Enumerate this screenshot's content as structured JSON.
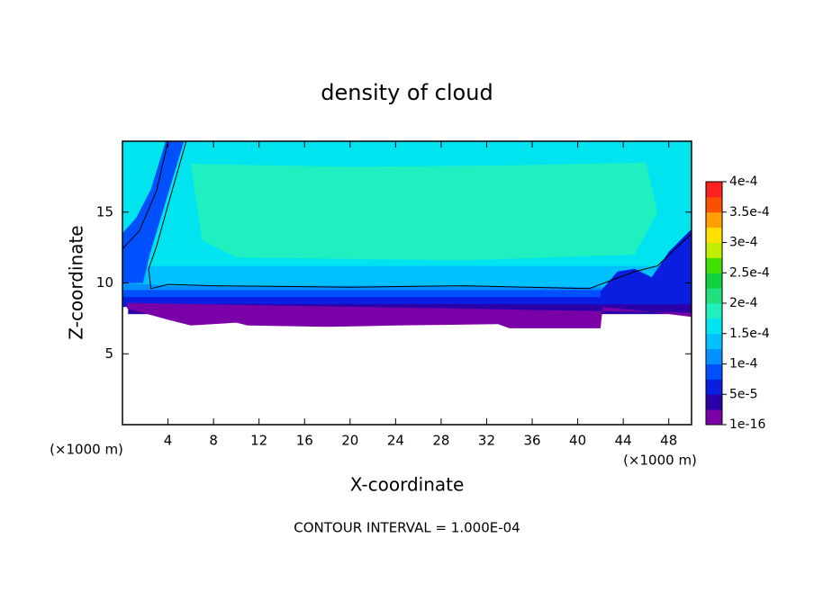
{
  "chart_data": {
    "type": "contour",
    "title": "density of cloud",
    "x_label": "X-coordinate",
    "y_label": "Z-coordinate",
    "x_unit": "(×1000 m)",
    "y_unit": "(×1000 m)",
    "footnote": "CONTOUR INTERVAL = 1.000E-04",
    "xlim": [
      0,
      50
    ],
    "xticks": [
      4,
      8,
      12,
      16,
      20,
      24,
      28,
      32,
      36,
      40,
      44,
      48
    ],
    "ylim": [
      0,
      20
    ],
    "yticks": [
      5,
      10,
      15
    ],
    "colorbar": {
      "ticks": [
        {
          "value": 1e-16,
          "label": "1e-16"
        },
        {
          "value": 5e-05,
          "label": "5e-5"
        },
        {
          "value": 0.0001,
          "label": "1e-4"
        },
        {
          "value": 0.00015,
          "label": "1.5e-4"
        },
        {
          "value": 0.0002,
          "label": "2e-4"
        },
        {
          "value": 0.00025,
          "label": "2.5e-4"
        },
        {
          "value": 0.0003,
          "label": "3e-4"
        },
        {
          "value": 0.00035,
          "label": "3.5e-4"
        },
        {
          "value": 0.0004,
          "label": "4e-4"
        }
      ],
      "colors": [
        "#7a00a8",
        "#2c00a8",
        "#0a1ee0",
        "#0050ff",
        "#0090ff",
        "#00c0ff",
        "#00e4f0",
        "#20f0c0",
        "#20e080",
        "#10d040",
        "#40e000",
        "#c0f000",
        "#ffe000",
        "#ffa000",
        "#ff5000",
        "#ff2020"
      ]
    }
  }
}
